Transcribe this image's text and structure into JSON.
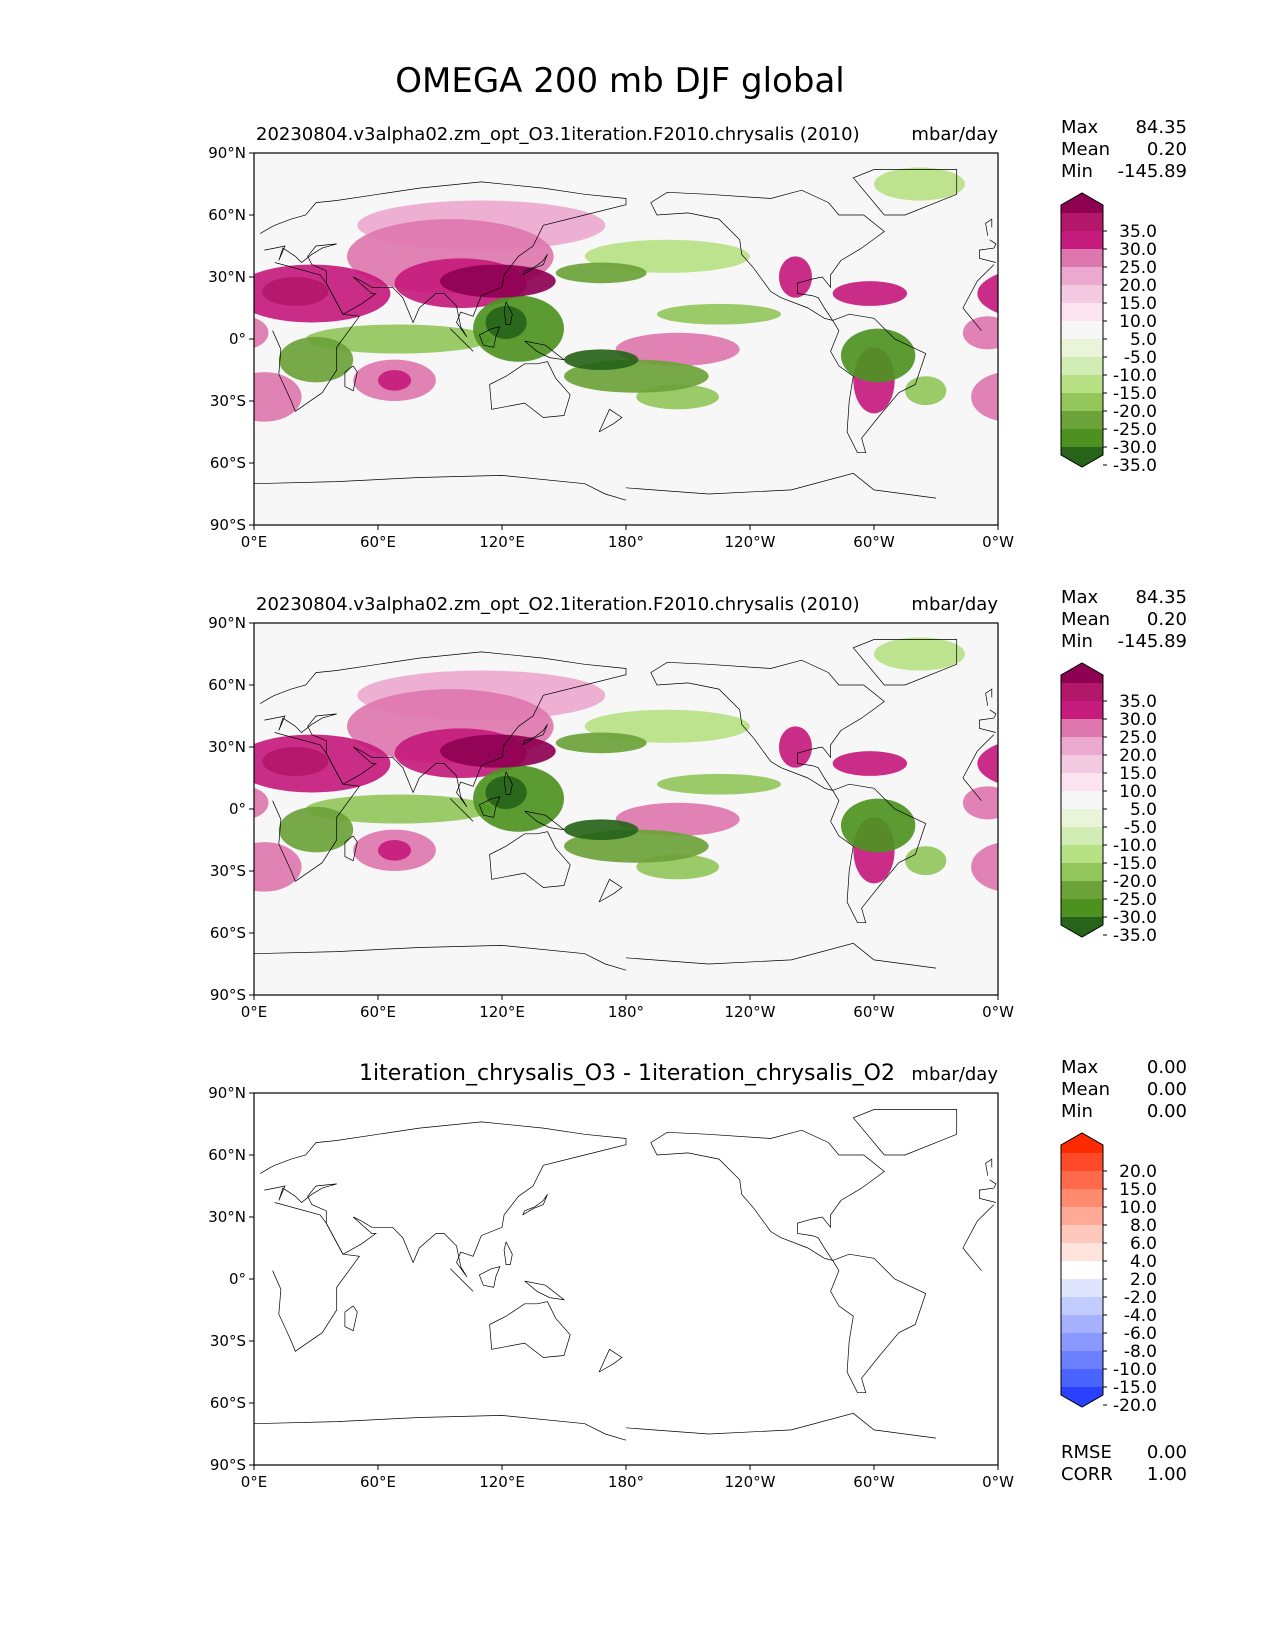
{
  "figure": {
    "title": "OMEGA 200 mb DJF global"
  },
  "chart_data": [
    {
      "type": "heatmap",
      "name": "test-panel",
      "title": "20230804.v3alpha02.zm_opt_O3.1iteration.F2010.chrysalis (2010)",
      "units": "mbar/day",
      "stats": [
        {
          "label": "Max",
          "value": "84.35"
        },
        {
          "label": "Mean",
          "value": "0.20"
        },
        {
          "label": "Min",
          "value": "-145.89"
        }
      ],
      "xticks": [
        "0°E",
        "60°E",
        "120°E",
        "180°",
        "120°W",
        "60°W",
        "0°W"
      ],
      "yticks": [
        "90°N",
        "60°N",
        "30°N",
        "0°",
        "30°S",
        "60°S",
        "90°S"
      ],
      "xlim": [
        0,
        360
      ],
      "ylim": [
        -90,
        90
      ],
      "colorbar": {
        "labels": [
          "35.0",
          "30.0",
          "25.0",
          "20.0",
          "15.0",
          "10.0",
          "5.0",
          "-5.0",
          "-10.0",
          "-15.0",
          "-20.0",
          "-25.0",
          "-30.0",
          "-35.0"
        ],
        "colors": [
          "#8e0152",
          "#b3176a",
          "#c51b7d",
          "#de77ae",
          "#eca9cf",
          "#f4cae3",
          "#fbe4f0",
          "#f7f7f7",
          "#e9f4d9",
          "#d2ecb5",
          "#b8e186",
          "#93c65b",
          "#6ca23a",
          "#4d9221",
          "#276419"
        ]
      },
      "contours": [
        {
          "c": 8,
          "lon": 28,
          "lat": 22,
          "rx": 38,
          "ry": 14
        },
        {
          "c": 11,
          "lon": 20,
          "lat": 23,
          "rx": 16,
          "ry": 7
        },
        {
          "c": 7,
          "lon": 5,
          "lat": -28,
          "rx": 18,
          "ry": 12
        },
        {
          "c": 9,
          "lon": 100,
          "lat": 27,
          "rx": 32,
          "ry": 12
        },
        {
          "c": 12,
          "lon": 118,
          "lat": 28,
          "rx": 28,
          "ry": 8
        },
        {
          "c": 6,
          "lon": 95,
          "lat": 40,
          "rx": 50,
          "ry": 18
        },
        {
          "c": 5,
          "lon": 110,
          "lat": 55,
          "rx": 60,
          "ry": 12
        },
        {
          "c": 7,
          "lon": 68,
          "lat": -20,
          "rx": 20,
          "ry": 10
        },
        {
          "c": 9,
          "lon": 68,
          "lat": -20,
          "rx": 8,
          "ry": 5
        },
        {
          "c": 6,
          "lon": 205,
          "lat": -5,
          "rx": 30,
          "ry": 8
        },
        {
          "c": 8,
          "lon": 300,
          "lat": -20,
          "rx": 10,
          "ry": 16
        },
        {
          "c": 9,
          "lon": 298,
          "lat": 22,
          "rx": 18,
          "ry": 6
        },
        {
          "c": 8,
          "lon": 262,
          "lat": 30,
          "rx": 8,
          "ry": 10
        },
        {
          "c": 7,
          "lon": 355,
          "lat": 3,
          "rx": 12,
          "ry": 8
        },
        {
          "c": -9,
          "lon": 30,
          "lat": -10,
          "rx": 18,
          "ry": 11
        },
        {
          "c": -7,
          "lon": 70,
          "lat": 0,
          "rx": 45,
          "ry": 7
        },
        {
          "c": -10,
          "lon": 128,
          "lat": 5,
          "rx": 22,
          "ry": 16
        },
        {
          "c": -12,
          "lon": 122,
          "lat": 8,
          "rx": 10,
          "ry": 8
        },
        {
          "c": -9,
          "lon": 185,
          "lat": -18,
          "rx": 35,
          "ry": 8
        },
        {
          "c": -12,
          "lon": 168,
          "lat": -10,
          "rx": 18,
          "ry": 5
        },
        {
          "c": -7,
          "lon": 205,
          "lat": -28,
          "rx": 20,
          "ry": 6
        },
        {
          "c": -10,
          "lon": 302,
          "lat": -8,
          "rx": 18,
          "ry": 13
        },
        {
          "c": -8,
          "lon": 168,
          "lat": 32,
          "rx": 22,
          "ry": 5
        },
        {
          "c": -6,
          "lon": 225,
          "lat": 12,
          "rx": 30,
          "ry": 5
        },
        {
          "c": -5,
          "lon": 322,
          "lat": 75,
          "rx": 22,
          "ry": 8
        },
        {
          "c": -5,
          "lon": 200,
          "lat": 40,
          "rx": 40,
          "ry": 8
        },
        {
          "c": -6,
          "lon": 325,
          "lat": -25,
          "rx": 10,
          "ry": 7
        }
      ]
    },
    {
      "type": "heatmap",
      "name": "reference-panel",
      "title": "20230804.v3alpha02.zm_opt_O2.1iteration.F2010.chrysalis (2010)",
      "units": "mbar/day",
      "stats": [
        {
          "label": "Max",
          "value": "84.35"
        },
        {
          "label": "Mean",
          "value": "0.20"
        },
        {
          "label": "Min",
          "value": "-145.89"
        }
      ],
      "xticks": [
        "0°E",
        "60°E",
        "120°E",
        "180°",
        "120°W",
        "60°W",
        "0°W"
      ],
      "yticks": [
        "90°N",
        "60°N",
        "30°N",
        "0°",
        "30°S",
        "60°S",
        "90°S"
      ],
      "xlim": [
        0,
        360
      ],
      "ylim": [
        -90,
        90
      ],
      "colorbar": {
        "labels": [
          "35.0",
          "30.0",
          "25.0",
          "20.0",
          "15.0",
          "10.0",
          "5.0",
          "-5.0",
          "-10.0",
          "-15.0",
          "-20.0",
          "-25.0",
          "-30.0",
          "-35.0"
        ],
        "colors": [
          "#8e0152",
          "#b3176a",
          "#c51b7d",
          "#de77ae",
          "#eca9cf",
          "#f4cae3",
          "#fbe4f0",
          "#f7f7f7",
          "#e9f4d9",
          "#d2ecb5",
          "#b8e186",
          "#93c65b",
          "#6ca23a",
          "#4d9221",
          "#276419"
        ]
      },
      "contours": [
        {
          "c": 8,
          "lon": 28,
          "lat": 22,
          "rx": 38,
          "ry": 14
        },
        {
          "c": 11,
          "lon": 20,
          "lat": 23,
          "rx": 16,
          "ry": 7
        },
        {
          "c": 7,
          "lon": 5,
          "lat": -28,
          "rx": 18,
          "ry": 12
        },
        {
          "c": 9,
          "lon": 100,
          "lat": 27,
          "rx": 32,
          "ry": 12
        },
        {
          "c": 12,
          "lon": 118,
          "lat": 28,
          "rx": 28,
          "ry": 8
        },
        {
          "c": 6,
          "lon": 95,
          "lat": 40,
          "rx": 50,
          "ry": 18
        },
        {
          "c": 5,
          "lon": 110,
          "lat": 55,
          "rx": 60,
          "ry": 12
        },
        {
          "c": 7,
          "lon": 68,
          "lat": -20,
          "rx": 20,
          "ry": 10
        },
        {
          "c": 9,
          "lon": 68,
          "lat": -20,
          "rx": 8,
          "ry": 5
        },
        {
          "c": 6,
          "lon": 205,
          "lat": -5,
          "rx": 30,
          "ry": 8
        },
        {
          "c": 8,
          "lon": 300,
          "lat": -20,
          "rx": 10,
          "ry": 16
        },
        {
          "c": 9,
          "lon": 298,
          "lat": 22,
          "rx": 18,
          "ry": 6
        },
        {
          "c": 8,
          "lon": 262,
          "lat": 30,
          "rx": 8,
          "ry": 10
        },
        {
          "c": 7,
          "lon": 355,
          "lat": 3,
          "rx": 12,
          "ry": 8
        },
        {
          "c": -9,
          "lon": 30,
          "lat": -10,
          "rx": 18,
          "ry": 11
        },
        {
          "c": -7,
          "lon": 70,
          "lat": 0,
          "rx": 45,
          "ry": 7
        },
        {
          "c": -10,
          "lon": 128,
          "lat": 5,
          "rx": 22,
          "ry": 16
        },
        {
          "c": -12,
          "lon": 122,
          "lat": 8,
          "rx": 10,
          "ry": 8
        },
        {
          "c": -9,
          "lon": 185,
          "lat": -18,
          "rx": 35,
          "ry": 8
        },
        {
          "c": -12,
          "lon": 168,
          "lat": -10,
          "rx": 18,
          "ry": 5
        },
        {
          "c": -7,
          "lon": 205,
          "lat": -28,
          "rx": 20,
          "ry": 6
        },
        {
          "c": -10,
          "lon": 302,
          "lat": -8,
          "rx": 18,
          "ry": 13
        },
        {
          "c": -8,
          "lon": 168,
          "lat": 32,
          "rx": 22,
          "ry": 5
        },
        {
          "c": -6,
          "lon": 225,
          "lat": 12,
          "rx": 30,
          "ry": 5
        },
        {
          "c": -5,
          "lon": 322,
          "lat": 75,
          "rx": 22,
          "ry": 8
        },
        {
          "c": -5,
          "lon": 200,
          "lat": 40,
          "rx": 40,
          "ry": 8
        },
        {
          "c": -6,
          "lon": 325,
          "lat": -25,
          "rx": 10,
          "ry": 7
        }
      ]
    },
    {
      "type": "heatmap",
      "name": "difference-panel",
      "title": "1iteration_chrysalis_O3 - 1iteration_chrysalis_O2",
      "units": "mbar/day",
      "stats": [
        {
          "label": "Max",
          "value": "0.00"
        },
        {
          "label": "Mean",
          "value": "0.00"
        },
        {
          "label": "Min",
          "value": "0.00"
        }
      ],
      "xticks": [
        "0°E",
        "60°E",
        "120°E",
        "180°",
        "120°W",
        "60°W",
        "0°W"
      ],
      "yticks": [
        "90°N",
        "60°N",
        "30°N",
        "0°",
        "30°S",
        "60°S",
        "90°S"
      ],
      "xlim": [
        0,
        360
      ],
      "ylim": [
        -90,
        90
      ],
      "colorbar": {
        "labels": [
          "20.0",
          "15.0",
          "10.0",
          "8.0",
          "6.0",
          "4.0",
          "2.0",
          "-2.0",
          "-4.0",
          "-6.0",
          "-8.0",
          "-10.0",
          "-15.0",
          "-20.0"
        ],
        "colors": [
          "#ff2a00",
          "#ff4a2a",
          "#ff6a4a",
          "#ff8a6e",
          "#ffaa96",
          "#ffc8bc",
          "#ffe4de",
          "#ffffff",
          "#dfe5ff",
          "#c3ccff",
          "#a6b2ff",
          "#8a99ff",
          "#6b7fff",
          "#4a64ff",
          "#2a40ff"
        ]
      },
      "contours": [],
      "metrics": [
        {
          "label": "RMSE",
          "value": "0.00"
        },
        {
          "label": "CORR",
          "value": "1.00"
        }
      ]
    }
  ]
}
